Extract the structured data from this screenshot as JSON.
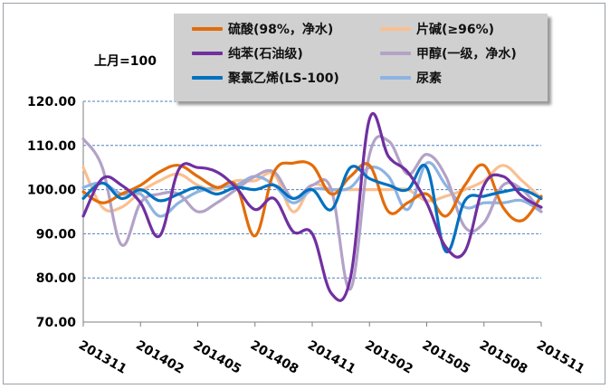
{
  "chart_data": {
    "type": "line",
    "unit_note": "上月=100",
    "ylim": [
      70,
      120
    ],
    "yticks": [
      "70.00",
      "80.00",
      "90.00",
      "100.00",
      "110.00",
      "120.00"
    ],
    "x": [
      "201311",
      "201312",
      "201401",
      "201402",
      "201403",
      "201404",
      "201405",
      "201406",
      "201407",
      "201408",
      "201409",
      "201410",
      "201411",
      "201412",
      "201501",
      "201502",
      "201503",
      "201504",
      "201505",
      "201506",
      "201507",
      "201508",
      "201509",
      "201510",
      "201511"
    ],
    "xtick_labels": [
      "201311",
      "201402",
      "201405",
      "201408",
      "201411",
      "201502",
      "201505",
      "201508",
      "201511"
    ],
    "grid": "horizontal dashed",
    "legend": "top-right",
    "series": [
      {
        "name": "硫酸(98%，净水)",
        "color": "#e36c0a",
        "values": [
          99.5,
          97,
          99,
          101,
          104,
          105.5,
          103,
          100.5,
          101,
          89.5,
          104,
          106,
          105.5,
          99,
          103,
          105.5,
          95,
          97,
          99,
          94,
          101,
          105.5,
          96,
          93,
          98.5
        ]
      },
      {
        "name": "片碱(≥96%)",
        "color": "#fabf8f",
        "values": [
          105,
          96,
          96,
          99.5,
          102,
          103.5,
          101,
          100,
          102,
          102,
          103.5,
          95,
          101,
          100,
          100,
          100,
          100,
          100,
          97.5,
          98.5,
          100,
          102,
          105.5,
          102,
          98
        ]
      },
      {
        "name": "纯苯(石油级)",
        "color": "#7030a0",
        "values": [
          94,
          102.5,
          101,
          97,
          89.5,
          104.5,
          105,
          104,
          100.5,
          95.5,
          98,
          90.5,
          90,
          76.5,
          80,
          116,
          107.5,
          104,
          97,
          87,
          86,
          101,
          103,
          98.5,
          96
        ]
      },
      {
        "name": "甲醇(一级，净水)",
        "color": "#b3a2c7",
        "values": [
          111.5,
          105,
          87.5,
          97,
          99,
          99,
          95,
          97,
          100,
          103,
          104,
          98,
          101,
          100,
          77.5,
          108,
          111,
          103.5,
          108,
          103,
          91.5,
          92.5,
          101,
          100,
          95
        ]
      },
      {
        "name": "聚氯乙烯(LS-100)",
        "color": "#0070c0",
        "values": [
          98,
          101.5,
          98,
          100,
          97.5,
          99,
          100.5,
          99,
          100.5,
          100,
          101,
          98,
          100,
          95.5,
          105,
          102.5,
          101,
          100,
          105,
          86,
          97.5,
          98.5,
          99.5,
          100,
          98
        ]
      },
      {
        "name": "尿素",
        "color": "#8db3e2",
        "values": [
          100.5,
          101.5,
          99,
          99,
          94,
          97,
          99.5,
          100.5,
          101,
          103,
          101,
          97,
          100,
          100,
          100.5,
          105,
          103,
          95.5,
          106,
          101,
          96,
          97,
          97,
          97.5,
          95
        ]
      }
    ]
  }
}
